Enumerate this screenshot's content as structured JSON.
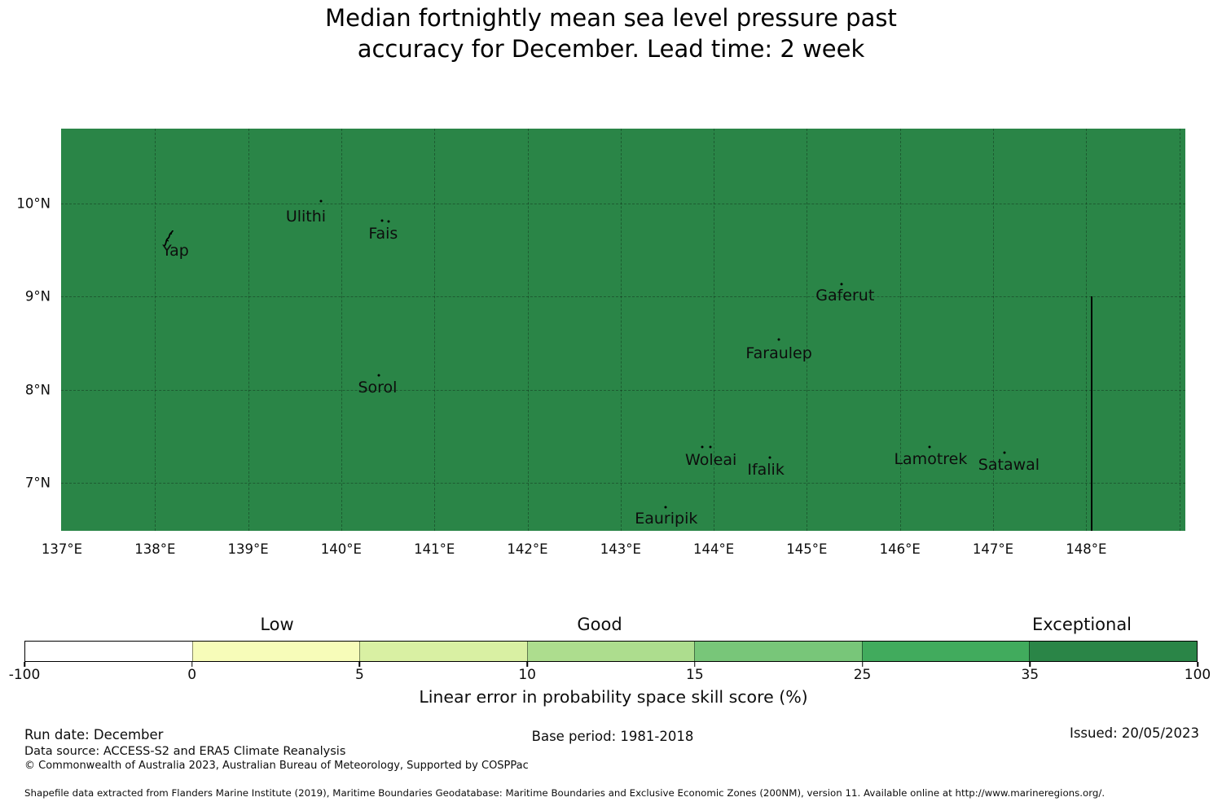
{
  "title": {
    "line1": "Median fortnightly mean sea level pressure past",
    "line2": "accuracy for December. Lead time: 2 week"
  },
  "map": {
    "x_ticks": [
      "137°E",
      "138°E",
      "139°E",
      "140°E",
      "141°E",
      "142°E",
      "143°E",
      "144°E",
      "145°E",
      "146°E",
      "147°E",
      "148°E"
    ],
    "y_ticks": [
      "10°N",
      "9°N",
      "8°N",
      "7°N"
    ],
    "fill_color": "#2a8547",
    "islands": [
      {
        "name": "Yap",
        "label_lon": 138.22,
        "label_lat": 9.49,
        "squiggle": {
          "lon": 138.15,
          "lat": 9.61
        },
        "dots": []
      },
      {
        "name": "Ulithi",
        "label_lon": 139.62,
        "label_lat": 9.86,
        "dots": [
          [
            139.78,
            10.03
          ]
        ]
      },
      {
        "name": "Fais",
        "label_lon": 140.45,
        "label_lat": 9.68,
        "dots": [
          [
            140.44,
            9.82
          ],
          [
            140.51,
            9.81
          ]
        ]
      },
      {
        "name": "Sorol",
        "label_lon": 140.39,
        "label_lat": 8.02,
        "dots": [
          [
            140.4,
            8.15
          ]
        ]
      },
      {
        "name": "Gaferut",
        "label_lon": 145.41,
        "label_lat": 9.01,
        "dots": [
          [
            145.37,
            9.13
          ]
        ]
      },
      {
        "name": "Faraulep",
        "label_lon": 144.7,
        "label_lat": 8.39,
        "dots": [
          [
            144.7,
            8.54
          ]
        ]
      },
      {
        "name": "Woleai",
        "label_lon": 143.97,
        "label_lat": 7.24,
        "dots": [
          [
            143.88,
            7.38
          ],
          [
            143.96,
            7.38
          ]
        ]
      },
      {
        "name": "Ifalik",
        "label_lon": 144.56,
        "label_lat": 7.14,
        "dots": [
          [
            144.6,
            7.27
          ]
        ]
      },
      {
        "name": "Lamotrek",
        "label_lon": 146.33,
        "label_lat": 7.25,
        "dots": [
          [
            146.32,
            7.38
          ]
        ]
      },
      {
        "name": "Satawal",
        "label_lon": 147.17,
        "label_lat": 7.19,
        "dots": [
          [
            147.12,
            7.32
          ]
        ]
      },
      {
        "name": "Eauripik",
        "label_lon": 143.49,
        "label_lat": 6.61,
        "dots": [
          [
            143.48,
            6.74
          ]
        ]
      }
    ],
    "eez_line": {
      "lon": 148.05,
      "from_lat": 9.0
    }
  },
  "colorbar": {
    "zones": [
      "Low",
      "Good",
      "Exceptional"
    ],
    "tick_labels": [
      "-100",
      "0",
      "5",
      "10",
      "15",
      "25",
      "35",
      "100"
    ],
    "segment_colors": [
      "#ffffff",
      "#f7fcb9",
      "#d9f0a3",
      "#addd8e",
      "#78c679",
      "#41ab5d",
      "#2a8547"
    ],
    "xlabel": "Linear error in probability space skill score (%)"
  },
  "footer": {
    "run_date": "Run date: December",
    "data_source": "Data source: ACCESS-S2 and ERA5 Climate Reanalysis",
    "copyright": "© Commonwealth of Australia 2023, Australian Bureau of Meteorology, Supported by COSPPac",
    "base_period": "Base period: 1981-2018",
    "issued": "Issued: 20/05/2023",
    "shapefile": "Shapefile data extracted from Flanders Marine Institute (2019), Maritime Boundaries Geodatabase: Maritime Boundaries and Exclusive Economic Zones (200NM), version 11. Available online at http://www.marineregions.org/."
  },
  "chart_data": {
    "type": "heatmap",
    "title": "Median fortnightly mean sea level pressure past accuracy for December. Lead time: 2 week",
    "x_axis": {
      "ticks": [
        "137°E",
        "138°E",
        "139°E",
        "140°E",
        "141°E",
        "142°E",
        "143°E",
        "144°E",
        "145°E",
        "146°E",
        "147°E",
        "148°E"
      ],
      "range_deg": [
        137.0,
        149.1
      ]
    },
    "y_axis": {
      "ticks": [
        "10°N",
        "9°N",
        "8°N",
        "7°N"
      ],
      "range_deg": [
        6.48,
        10.8
      ]
    },
    "colorbar": {
      "label": "Linear error in probability space skill score (%)",
      "bounds": [
        -100,
        0,
        5,
        10,
        15,
        25,
        35,
        100
      ],
      "colors": [
        "#ffffff",
        "#f7fcb9",
        "#d9f0a3",
        "#addd8e",
        "#78c679",
        "#41ab5d",
        "#2a8547"
      ],
      "zone_labels": [
        {
          "label": "Low",
          "centered_over": [
            0,
            5
          ]
        },
        {
          "label": "Good",
          "centered_over": [
            10,
            15
          ]
        },
        {
          "label": "Exceptional",
          "centered_over": [
            35,
            100
          ]
        }
      ]
    },
    "field_values": "Uniform over entire mapped region: skill score in the 35–100 bin (Exceptional)",
    "islands": [
      {
        "name": "Yap",
        "lon": 138.15,
        "lat": 9.55
      },
      {
        "name": "Ulithi",
        "lon": 139.78,
        "lat": 10.03
      },
      {
        "name": "Fais",
        "lon": 140.48,
        "lat": 9.81
      },
      {
        "name": "Sorol",
        "lon": 140.4,
        "lat": 8.15
      },
      {
        "name": "Gaferut",
        "lon": 145.37,
        "lat": 9.13
      },
      {
        "name": "Faraulep",
        "lon": 144.7,
        "lat": 8.54
      },
      {
        "name": "Woleai",
        "lon": 143.92,
        "lat": 7.38
      },
      {
        "name": "Ifalik",
        "lon": 144.6,
        "lat": 7.27
      },
      {
        "name": "Lamotrek",
        "lon": 146.32,
        "lat": 7.38
      },
      {
        "name": "Satawal",
        "lon": 147.12,
        "lat": 7.32
      },
      {
        "name": "Eauripik",
        "lon": 143.48,
        "lat": 6.74
      }
    ],
    "boundary_line": {
      "description": "vertical maritime boundary line",
      "lon": 148.05,
      "lat_range": [
        6.48,
        9.0
      ]
    }
  }
}
